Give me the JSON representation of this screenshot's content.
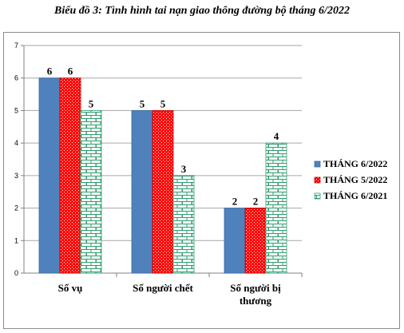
{
  "chart_data": {
    "type": "bar",
    "title": "Biểu đồ 3: Tình hình tai nạn giao thông đường bộ tháng 6/2022",
    "xlabel": "",
    "ylabel": "",
    "ylim": [
      0,
      7
    ],
    "yticks": [
      "0",
      "1",
      "2",
      "3",
      "4",
      "5",
      "6",
      "7"
    ],
    "grid": true,
    "legend_position": "right",
    "categories": [
      [
        "Số vụ"
      ],
      [
        "Số người chết"
      ],
      [
        "Số người bị",
        "thương"
      ]
    ],
    "series": [
      {
        "name": "THÁNG 6/2022",
        "values": [
          6,
          5,
          2
        ],
        "color": "#4f81bd",
        "pattern": "solid"
      },
      {
        "name": "THÁNG 5/2022",
        "values": [
          6,
          5,
          2
        ],
        "color": "#ff0000",
        "pattern": "dots"
      },
      {
        "name": "THÁNG 6/2021",
        "values": [
          5,
          3,
          4
        ],
        "color": "#2e9e6f",
        "pattern": "bricks"
      }
    ]
  }
}
